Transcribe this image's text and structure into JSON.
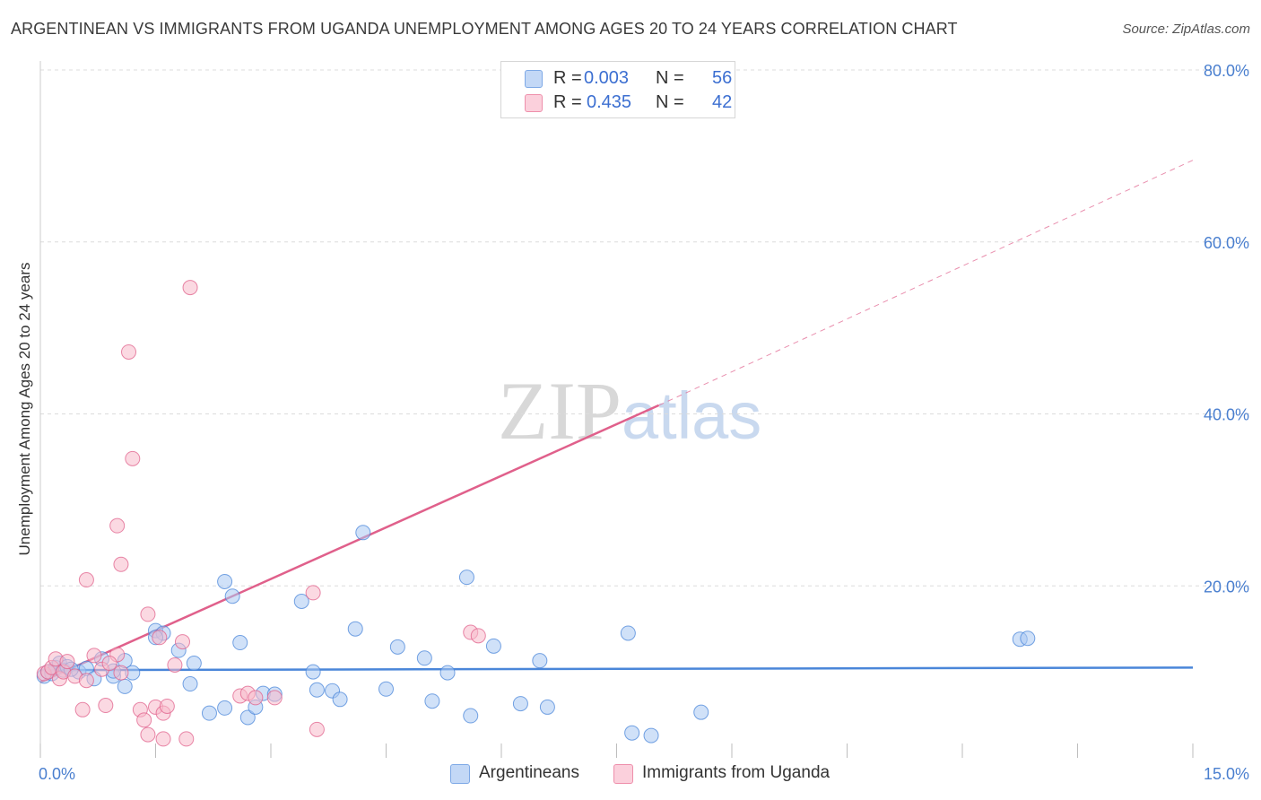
{
  "title": "ARGENTINEAN VS IMMIGRANTS FROM UGANDA UNEMPLOYMENT AMONG AGES 20 TO 24 YEARS CORRELATION CHART",
  "source": "Source: ZipAtlas.com",
  "watermark": {
    "zip": "ZIP",
    "atlas": "atlas"
  },
  "legend": {
    "rows": [
      {
        "r_label": "R =",
        "r_value": "0.003",
        "n_label": "N =",
        "n_value": "56",
        "color": "#a9c8f3"
      },
      {
        "r_label": "R =",
        "r_value": "0.435",
        "n_label": "N =",
        "n_value": "42",
        "color": "#f7b9cb"
      }
    ]
  },
  "bottom_legend": [
    {
      "label": "Argentineans",
      "color": "#a9c8f3"
    },
    {
      "label": "Immigrants from Uganda",
      "color": "#f7b9cb"
    }
  ],
  "chart_data": {
    "type": "scatter",
    "title": "ARGENTINEAN VS IMMIGRANTS FROM UGANDA UNEMPLOYMENT AMONG AGES 20 TO 24 YEARS CORRELATION CHART",
    "xlabel": "",
    "ylabel": "Unemployment Among Ages 20 to 24 years",
    "xlim": [
      0,
      15
    ],
    "ylim": [
      0,
      80
    ],
    "x_tick_labels": [
      "0.0%",
      "15.0%"
    ],
    "y_ticks": [
      20,
      40,
      60,
      80
    ],
    "y_tick_labels": [
      "20.0%",
      "40.0%",
      "60.0%",
      "80.0%"
    ],
    "grid": true,
    "series": [
      {
        "name": "Argentineans",
        "color": "#4a86d9",
        "fill": "#a9c8f3",
        "trend": {
          "x0": 0.0,
          "y0": 10.2,
          "x1": 15.0,
          "y1": 10.5,
          "dashed_extension": false
        },
        "points": [
          [
            0.05,
            9.5
          ],
          [
            0.1,
            10.0
          ],
          [
            0.15,
            9.8
          ],
          [
            0.2,
            10.5
          ],
          [
            0.25,
            11.0
          ],
          [
            0.3,
            10.2
          ],
          [
            0.35,
            10.6
          ],
          [
            0.5,
            10.0
          ],
          [
            0.6,
            10.4
          ],
          [
            0.7,
            9.2
          ],
          [
            0.8,
            11.5
          ],
          [
            0.95,
            9.5
          ],
          [
            1.1,
            11.3
          ],
          [
            1.2,
            9.9
          ],
          [
            1.1,
            8.3
          ],
          [
            1.5,
            14.8
          ],
          [
            1.6,
            14.5
          ],
          [
            1.5,
            14.0
          ],
          [
            1.8,
            12.5
          ],
          [
            1.95,
            8.6
          ],
          [
            2.0,
            11.0
          ],
          [
            2.2,
            5.2
          ],
          [
            2.4,
            20.5
          ],
          [
            2.5,
            18.8
          ],
          [
            2.4,
            5.8
          ],
          [
            2.6,
            13.4
          ],
          [
            2.7,
            4.7
          ],
          [
            2.8,
            5.9
          ],
          [
            2.9,
            7.5
          ],
          [
            3.05,
            7.4
          ],
          [
            3.4,
            18.2
          ],
          [
            3.55,
            10.0
          ],
          [
            3.6,
            7.9
          ],
          [
            3.8,
            7.8
          ],
          [
            3.9,
            6.8
          ],
          [
            4.1,
            15.0
          ],
          [
            4.2,
            26.2
          ],
          [
            4.5,
            8.0
          ],
          [
            4.65,
            12.9
          ],
          [
            5.0,
            11.6
          ],
          [
            5.3,
            9.9
          ],
          [
            5.1,
            6.6
          ],
          [
            5.55,
            21.0
          ],
          [
            5.6,
            4.9
          ],
          [
            5.9,
            13.0
          ],
          [
            6.25,
            6.3
          ],
          [
            6.5,
            11.3
          ],
          [
            6.6,
            5.9
          ],
          [
            7.65,
            14.5
          ],
          [
            7.7,
            2.9
          ],
          [
            7.95,
            2.6
          ],
          [
            8.6,
            5.3
          ],
          [
            12.75,
            13.8
          ],
          [
            12.85,
            13.9
          ],
          [
            0.95,
            10.1
          ],
          [
            0.4,
            10.3
          ]
        ]
      },
      {
        "name": "Immigrants from Uganda",
        "color": "#e0608b",
        "fill": "#f7b9cb",
        "trend": {
          "x0": 0.0,
          "y0": 8.8,
          "x1": 8.05,
          "y1": 41.0,
          "dashed_to_x": 15.0,
          "dashed_to_y": 69.5
        },
        "points": [
          [
            0.05,
            9.8
          ],
          [
            0.1,
            10.0
          ],
          [
            0.15,
            10.5
          ],
          [
            0.2,
            11.5
          ],
          [
            0.25,
            9.2
          ],
          [
            0.3,
            10.0
          ],
          [
            0.35,
            11.2
          ],
          [
            0.45,
            9.5
          ],
          [
            0.55,
            5.6
          ],
          [
            0.6,
            9.0
          ],
          [
            0.7,
            11.9
          ],
          [
            0.8,
            10.3
          ],
          [
            0.85,
            6.1
          ],
          [
            1.0,
            12.0
          ],
          [
            1.05,
            9.9
          ],
          [
            0.9,
            11.0
          ],
          [
            0.6,
            20.7
          ],
          [
            1.0,
            27.0
          ],
          [
            1.05,
            22.5
          ],
          [
            1.2,
            34.8
          ],
          [
            1.15,
            47.2
          ],
          [
            1.4,
            16.7
          ],
          [
            1.3,
            5.6
          ],
          [
            1.35,
            4.4
          ],
          [
            1.4,
            2.7
          ],
          [
            1.5,
            5.9
          ],
          [
            1.6,
            5.2
          ],
          [
            1.65,
            6.0
          ],
          [
            1.55,
            14.0
          ],
          [
            1.75,
            10.8
          ],
          [
            1.85,
            13.5
          ],
          [
            1.6,
            2.2
          ],
          [
            1.9,
            2.2
          ],
          [
            1.95,
            54.7
          ],
          [
            2.6,
            7.2
          ],
          [
            2.7,
            7.5
          ],
          [
            2.8,
            7.0
          ],
          [
            3.05,
            7.0
          ],
          [
            3.55,
            19.2
          ],
          [
            3.6,
            3.3
          ],
          [
            5.6,
            14.6
          ],
          [
            5.7,
            14.2
          ]
        ]
      }
    ]
  }
}
